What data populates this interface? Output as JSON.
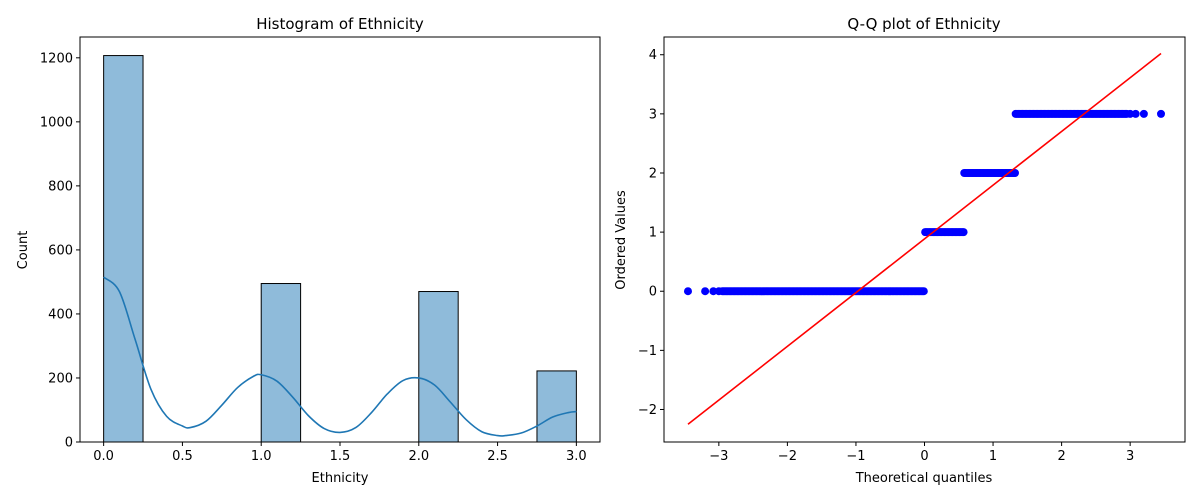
{
  "chart_data": [
    {
      "type": "bar",
      "title": "Histogram of Ethnicity",
      "xlabel": "Ethnicity",
      "ylabel": "Count",
      "xlim": [
        -0.15,
        3.15
      ],
      "ylim": [
        0,
        1265
      ],
      "xticks": [
        0.0,
        0.5,
        1.0,
        1.5,
        2.0,
        2.5,
        3.0
      ],
      "xtick_labels": [
        "0.0",
        "0.5",
        "1.0",
        "1.5",
        "2.0",
        "2.5",
        "3.0"
      ],
      "yticks": [
        0,
        200,
        400,
        600,
        800,
        1000,
        1200
      ],
      "ytick_labels": [
        "0",
        "200",
        "400",
        "600",
        "800",
        "1000",
        "1200"
      ],
      "bin_width": 0.25,
      "bins": [
        {
          "start": 0.0,
          "count": 1207
        },
        {
          "start": 1.0,
          "count": 495
        },
        {
          "start": 2.0,
          "count": 470
        },
        {
          "start": 2.75,
          "count": 222
        }
      ],
      "kde": {
        "x": [
          0.0,
          0.1,
          0.2,
          0.3,
          0.4,
          0.5,
          0.55,
          0.65,
          0.75,
          0.85,
          0.95,
          1.0,
          1.1,
          1.2,
          1.3,
          1.4,
          1.5,
          1.6,
          1.7,
          1.8,
          1.9,
          2.0,
          2.1,
          2.2,
          2.3,
          2.4,
          2.5,
          2.55,
          2.65,
          2.75,
          2.85,
          2.95,
          3.0
        ],
        "y": [
          515,
          470,
          320,
          165,
          80,
          50,
          45,
          65,
          115,
          170,
          205,
          210,
          190,
          140,
          82,
          42,
          30,
          45,
          92,
          150,
          192,
          200,
          178,
          125,
          70,
          32,
          20,
          20,
          28,
          50,
          78,
          92,
          95
        ]
      },
      "bar_color": "#8fbbda",
      "kde_color": "#1f77b4"
    },
    {
      "type": "scatter",
      "title": "Q-Q plot of Ethnicity",
      "xlabel": "Theoretical quantiles",
      "ylabel": "Ordered Values",
      "xlim": [
        -3.8,
        3.8
      ],
      "ylim": [
        -2.55,
        4.3
      ],
      "xticks": [
        -3,
        -2,
        -1,
        0,
        1,
        2,
        3
      ],
      "xtick_labels": [
        "−3",
        "−2",
        "−1",
        "0",
        "1",
        "2",
        "3"
      ],
      "yticks": [
        -2,
        -1,
        0,
        1,
        2,
        3,
        4
      ],
      "ytick_labels": [
        "−2",
        "−1",
        "0",
        "1",
        "2",
        "3",
        "4"
      ],
      "points": [
        {
          "y": 0,
          "x_isolated": [
            -3.45,
            -3.2,
            -3.08,
            -3.0
          ],
          "x_start": -2.95,
          "x_end": 0.0
        },
        {
          "y": 1,
          "x_isolated": [],
          "x_start": 0.01,
          "x_end": 0.57
        },
        {
          "y": 2,
          "x_isolated": [],
          "x_start": 0.58,
          "x_end": 1.32
        },
        {
          "y": 3,
          "x_isolated": [
            3.45,
            3.2,
            3.08,
            3.0
          ],
          "x_start": 1.33,
          "x_end": 2.95
        }
      ],
      "fit_line": {
        "x": [
          -3.45,
          3.45
        ],
        "y": [
          -2.25,
          4.02
        ]
      },
      "point_color": "#0000ff",
      "line_color": "#ff0000"
    }
  ]
}
